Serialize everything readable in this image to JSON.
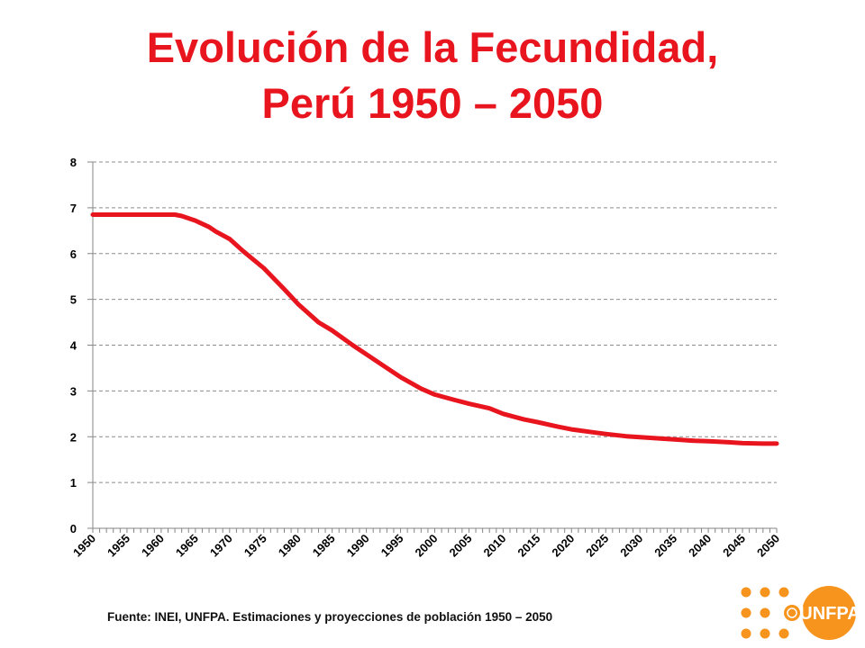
{
  "title_line1": "Evolución de la Fecundidad,",
  "title_line2": "Perú 1950 – 2050",
  "source": "Fuente: INEI, UNFPA. Estimaciones y proyecciones de población 1950 – 2050",
  "logo_text": "UNFPA",
  "colors": {
    "accent": "#e8141e",
    "logo": "#f7941d",
    "grid": "#8c8c8c"
  },
  "chart_data": {
    "type": "line",
    "title": "Evolución de la Fecundidad, Perú 1950 – 2050",
    "xlabel": "",
    "ylabel": "",
    "ylim": [
      0,
      8
    ],
    "xlim": [
      1950,
      2050
    ],
    "yticks": [
      "0",
      "1",
      "2",
      "3",
      "4",
      "5",
      "6",
      "7",
      "8"
    ],
    "xticks": [
      "1950",
      "1955",
      "1960",
      "1965",
      "1970",
      "1975",
      "1980",
      "1985",
      "1990",
      "1995",
      "2000",
      "2005",
      "2010",
      "2015",
      "2020",
      "2025",
      "2030",
      "2035",
      "2040",
      "2045",
      "2050"
    ],
    "grid": true,
    "legend": "none",
    "series": [
      {
        "color": "#e8141e",
        "points": [
          [
            1950,
            6.85
          ],
          [
            1955,
            6.85
          ],
          [
            1960,
            6.85
          ],
          [
            1962,
            6.85
          ],
          [
            1963,
            6.82
          ],
          [
            1965,
            6.72
          ],
          [
            1967,
            6.58
          ],
          [
            1968,
            6.48
          ],
          [
            1970,
            6.32
          ],
          [
            1972,
            6.05
          ],
          [
            1975,
            5.68
          ],
          [
            1978,
            5.22
          ],
          [
            1980,
            4.9
          ],
          [
            1983,
            4.5
          ],
          [
            1985,
            4.32
          ],
          [
            1988,
            4.0
          ],
          [
            1990,
            3.8
          ],
          [
            1993,
            3.5
          ],
          [
            1995,
            3.3
          ],
          [
            1998,
            3.05
          ],
          [
            2000,
            2.92
          ],
          [
            2003,
            2.8
          ],
          [
            2005,
            2.72
          ],
          [
            2008,
            2.62
          ],
          [
            2010,
            2.5
          ],
          [
            2013,
            2.38
          ],
          [
            2015,
            2.32
          ],
          [
            2018,
            2.22
          ],
          [
            2020,
            2.16
          ],
          [
            2023,
            2.1
          ],
          [
            2025,
            2.06
          ],
          [
            2028,
            2.01
          ],
          [
            2030,
            1.99
          ],
          [
            2033,
            1.96
          ],
          [
            2035,
            1.94
          ],
          [
            2038,
            1.91
          ],
          [
            2040,
            1.9
          ],
          [
            2043,
            1.88
          ],
          [
            2045,
            1.86
          ],
          [
            2048,
            1.85
          ],
          [
            2050,
            1.85
          ]
        ]
      }
    ]
  }
}
